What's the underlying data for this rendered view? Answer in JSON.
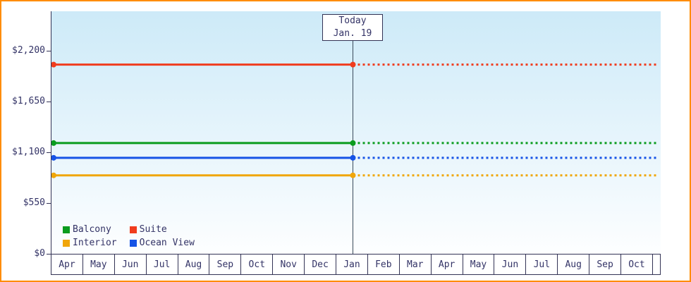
{
  "theme": {
    "frame_border": "#ff8c00",
    "text": "#333366",
    "axis": "#333355",
    "today_line": "#3a4a5a",
    "plot_gradient_top": "#cdeaf8",
    "plot_gradient_bottom": "#fdfeff"
  },
  "chart_data": {
    "type": "line",
    "title": "",
    "xlabel": "",
    "ylabel": "",
    "x_categories": [
      "Apr",
      "May",
      "Jun",
      "Jul",
      "Aug",
      "Sep",
      "Oct",
      "Nov",
      "Dec",
      "Jan",
      "Feb",
      "Mar",
      "Apr",
      "May",
      "Jun",
      "Jul",
      "Aug",
      "Sep",
      "Oct"
    ],
    "ylim": [
      0,
      2200
    ],
    "y_ticks": [
      0,
      550,
      1100,
      1650,
      2200
    ],
    "y_tick_labels": [
      "$0",
      "$550",
      "$1,100",
      "$1,650",
      "$2,200"
    ],
    "grid": false,
    "legend_position": "inside-bottom-left",
    "today": {
      "label": "Today",
      "date": "Jan. 19",
      "month": "Jan",
      "month_index": 9
    },
    "series": [
      {
        "name": "Balcony",
        "color": "#0a9c1e",
        "value": 1200,
        "past_style": "solid",
        "future_style": "dotted"
      },
      {
        "name": "Suite",
        "color": "#f03c1e",
        "value": 2050,
        "past_style": "solid",
        "future_style": "dotted"
      },
      {
        "name": "Interior",
        "color": "#f0a60a",
        "value": 850,
        "past_style": "solid",
        "future_style": "dotted"
      },
      {
        "name": "Ocean View",
        "color": "#1553e6",
        "value": 1040,
        "past_style": "solid",
        "future_style": "dotted"
      }
    ]
  }
}
